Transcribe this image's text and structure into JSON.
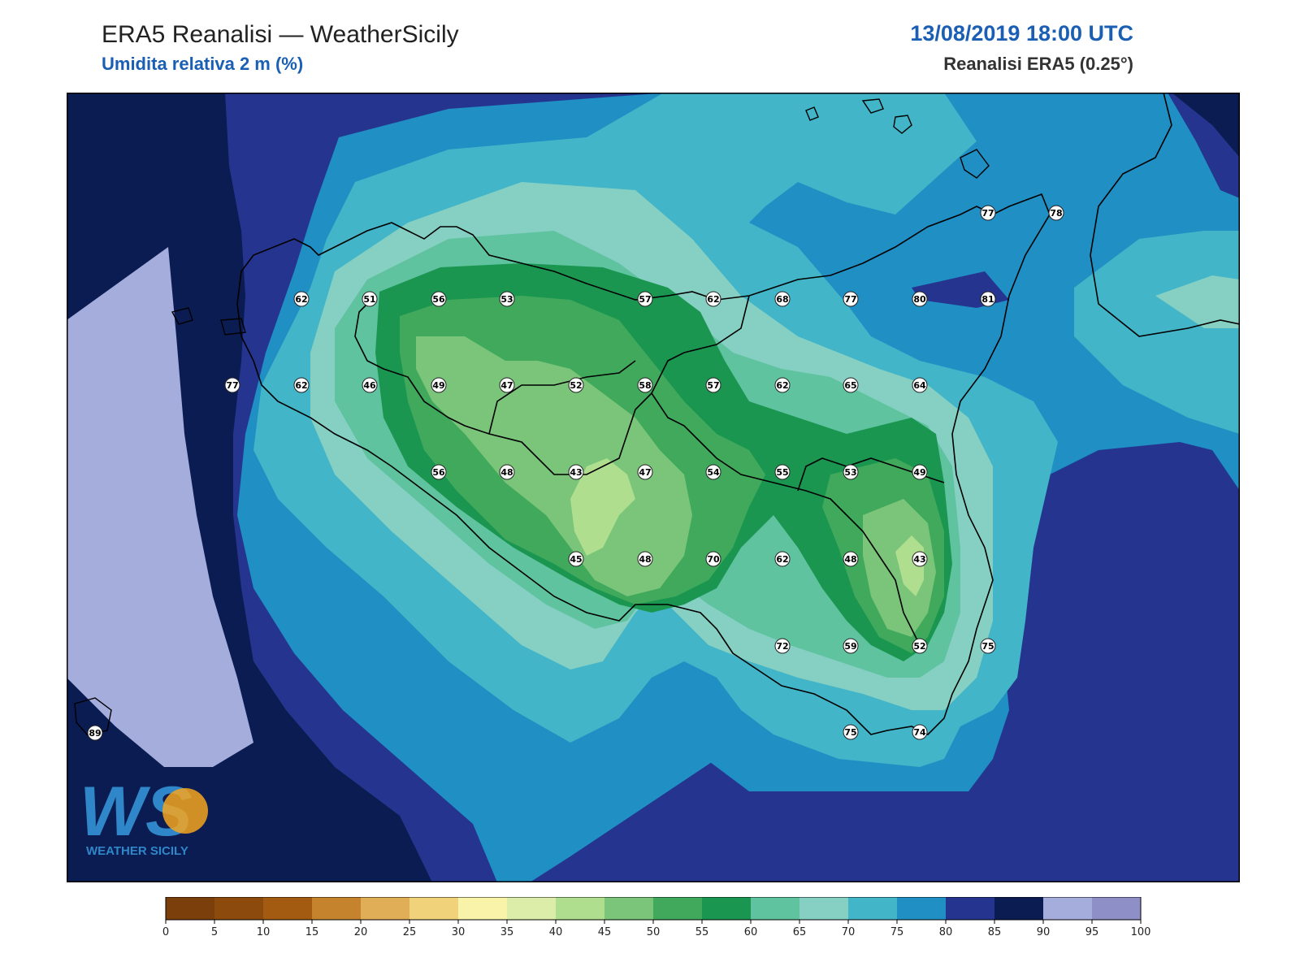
{
  "header": {
    "title": "ERA5 Reanalisi — WeatherSicily",
    "subtitle": "Umidita relativa 2 m (%)",
    "datetime": "13/08/2019 18:00 UTC",
    "source": "Reanalisi ERA5 (0.25°)"
  },
  "logo": {
    "letters": "WS",
    "text": "WEATHER SICILY"
  },
  "colorbar": {
    "ticks": [
      "0",
      "5",
      "10",
      "15",
      "20",
      "25",
      "30",
      "35",
      "40",
      "45",
      "50",
      "55",
      "60",
      "65",
      "70",
      "75",
      "80",
      "85",
      "90",
      "95",
      "100"
    ],
    "colors": [
      "#7a3f0b",
      "#8c4a0d",
      "#a35b12",
      "#c5832d",
      "#dfae57",
      "#f0d27b",
      "#f8f3a8",
      "#dcedaa",
      "#b0de8f",
      "#7ac57a",
      "#41a95b",
      "#1b9650",
      "#5fc3a0",
      "#86d0c3",
      "#42b5c8",
      "#1f8fc4",
      "#25358f",
      "#0b1c52",
      "#a4addb",
      "#8f8fc8"
    ]
  },
  "stations": [
    {
      "value": "62"
    },
    {
      "value": "51"
    },
    {
      "value": "56"
    },
    {
      "value": "53"
    },
    {
      "value": "57"
    },
    {
      "value": "62"
    },
    {
      "value": "68"
    },
    {
      "value": "77"
    },
    {
      "value": "80"
    },
    {
      "value": "81"
    },
    {
      "value": "77"
    },
    {
      "value": "62"
    },
    {
      "value": "46"
    },
    {
      "value": "49"
    },
    {
      "value": "47"
    },
    {
      "value": "52"
    },
    {
      "value": "58"
    },
    {
      "value": "57"
    },
    {
      "value": "62"
    },
    {
      "value": "65"
    },
    {
      "value": "64"
    },
    {
      "value": "56"
    },
    {
      "value": "48"
    },
    {
      "value": "43"
    },
    {
      "value": "47"
    },
    {
      "value": "54"
    },
    {
      "value": "55"
    },
    {
      "value": "53"
    },
    {
      "value": "49"
    },
    {
      "value": "45"
    },
    {
      "value": "48"
    },
    {
      "value": "70"
    },
    {
      "value": "62"
    },
    {
      "value": "48"
    },
    {
      "value": "43"
    },
    {
      "value": "72"
    },
    {
      "value": "59"
    },
    {
      "value": "52"
    },
    {
      "value": "75"
    },
    {
      "value": "75"
    },
    {
      "value": "74"
    },
    {
      "value": "77"
    },
    {
      "value": "78"
    },
    {
      "value": "89"
    }
  ]
}
